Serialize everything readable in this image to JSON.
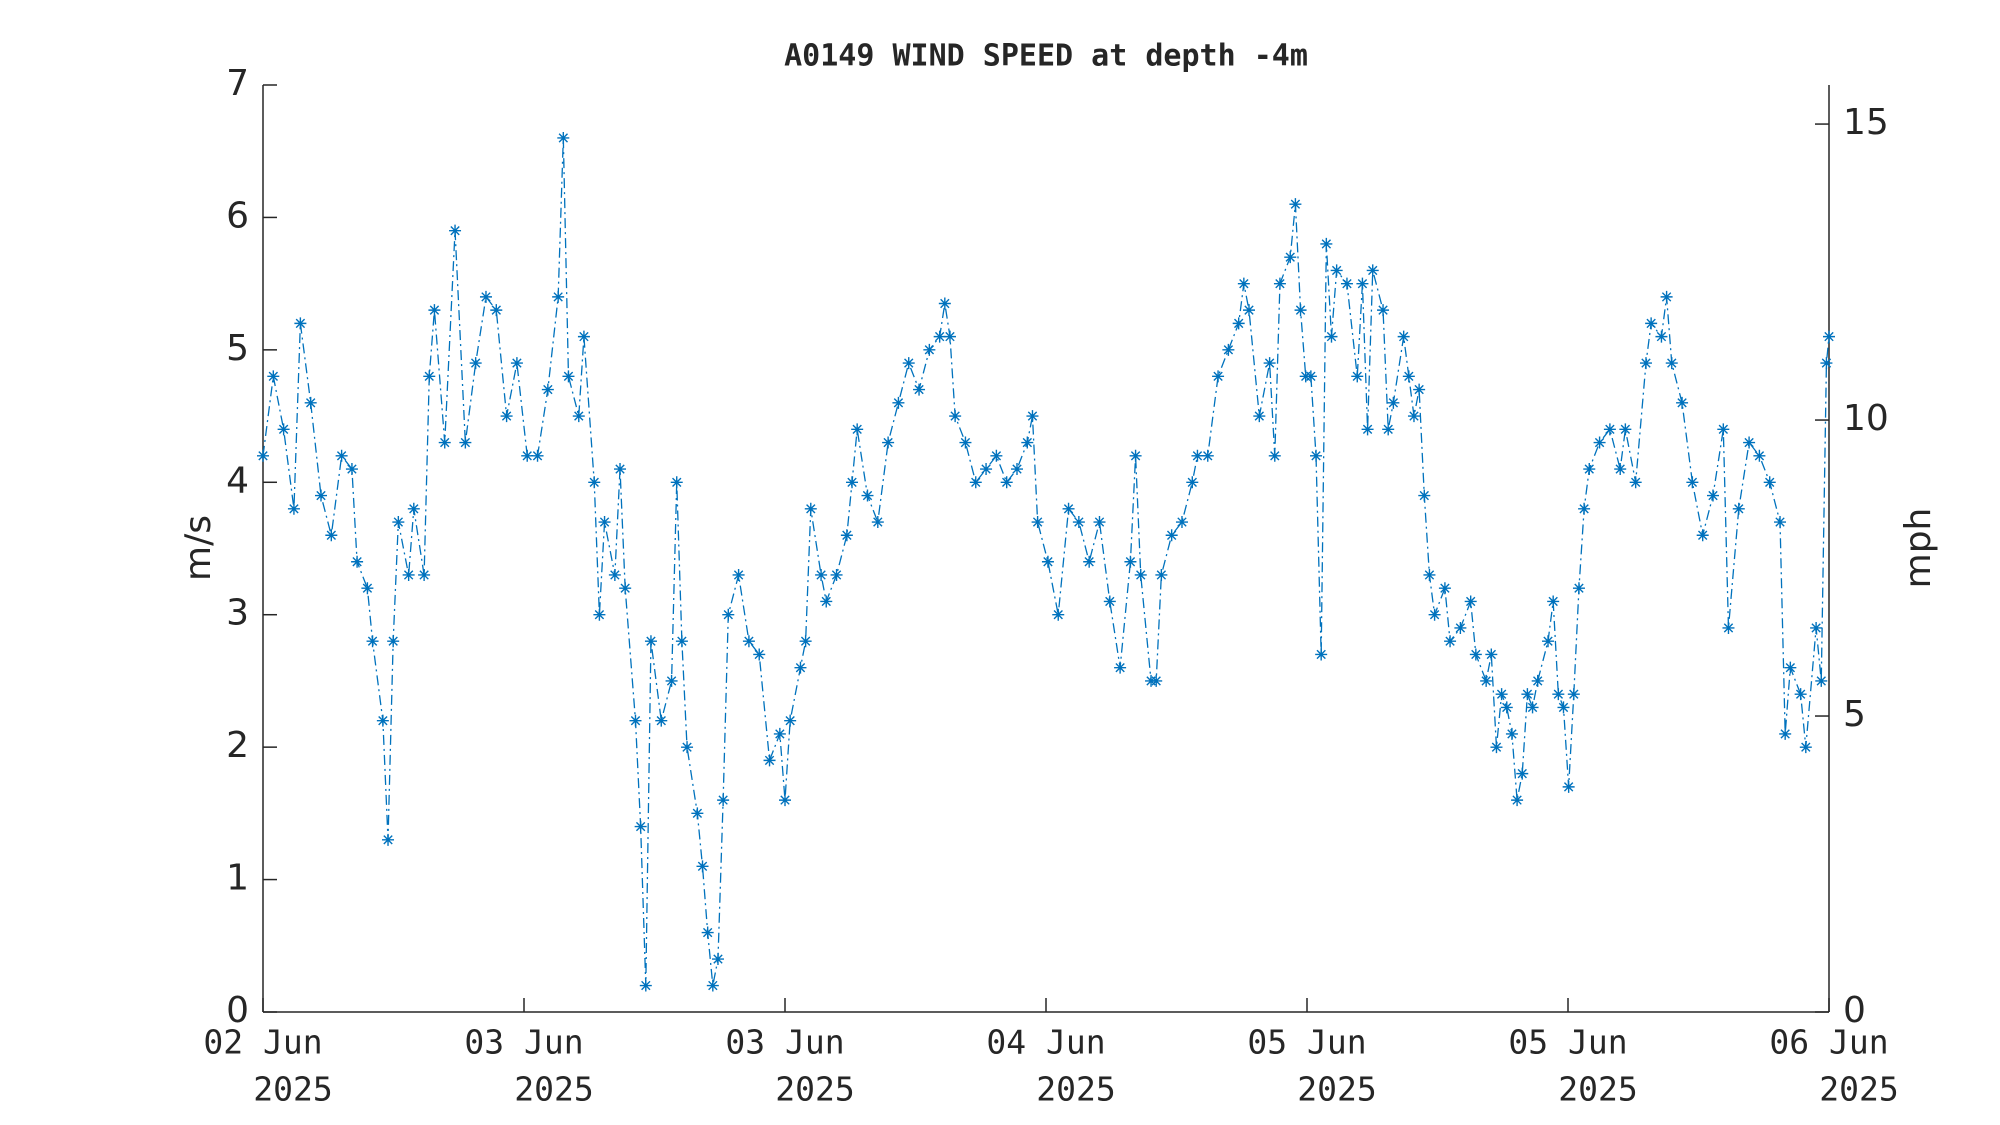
{
  "chart_data": {
    "type": "line",
    "title": "A0149 WIND SPEED at depth -4m",
    "ylabel": "m/s",
    "y2label": "mph",
    "xlim": [
      0,
      1215
    ],
    "xticks": [
      {
        "value": 0,
        "label": [
          "02 Jun",
          "2025"
        ]
      },
      {
        "value": 202.5,
        "label": [
          "03 Jun",
          "2025"
        ]
      },
      {
        "value": 405,
        "label": [
          "03 Jun",
          "2025"
        ]
      },
      {
        "value": 607.5,
        "label": [
          "04 Jun",
          "2025"
        ]
      },
      {
        "value": 810,
        "label": [
          "05 Jun",
          "2025"
        ]
      },
      {
        "value": 1012.5,
        "label": [
          "05 Jun",
          "2025"
        ]
      },
      {
        "value": 1215,
        "label": [
          "06 Jun",
          "2025"
        ]
      }
    ],
    "ylim": [
      0,
      7
    ],
    "yticks": [
      0,
      1,
      2,
      3,
      4,
      5,
      6,
      7
    ],
    "y2lim": [
      0,
      15.66
    ],
    "y2ticks": [
      0,
      5,
      10,
      15
    ],
    "series": [
      {
        "color": "#0072bd",
        "line_style": "dash-dot",
        "marker": "asterisk",
        "x": [
          0,
          8,
          16,
          24,
          29,
          37,
          45,
          53,
          61,
          69,
          73,
          81,
          85,
          93,
          97,
          101,
          105,
          113,
          117,
          125,
          129,
          133,
          141,
          149,
          157,
          165,
          173,
          181,
          189,
          197,
          205,
          213,
          221,
          229,
          233,
          237,
          245,
          249,
          257,
          261,
          265,
          273,
          277,
          281,
          289,
          293,
          297,
          301,
          309,
          317,
          321,
          325,
          329,
          337,
          341,
          345,
          349,
          353,
          357,
          361,
          369,
          377,
          385,
          393,
          401,
          405,
          409,
          417,
          421,
          425,
          433,
          437,
          445,
          453,
          457,
          461,
          469,
          477,
          485,
          493,
          501,
          509,
          517,
          525,
          529,
          533,
          537,
          545,
          553,
          561,
          569,
          577,
          585,
          593,
          597,
          601,
          609,
          617,
          625,
          633,
          641,
          649,
          657,
          665,
          673,
          677,
          681,
          689,
          693,
          697,
          705,
          713,
          721,
          725,
          733,
          741,
          749,
          757,
          761,
          765,
          773,
          781,
          785,
          789,
          797,
          801,
          805,
          809,
          813,
          817,
          821,
          825,
          829,
          833,
          841,
          849,
          853,
          857,
          861,
          869,
          873,
          877,
          885,
          889,
          893,
          897,
          901,
          905,
          909,
          917,
          921,
          929,
          937,
          941,
          949,
          953,
          957,
          961,
          965,
          969,
          973,
          977,
          981,
          985,
          989,
          997,
          1001,
          1005,
          1009,
          1013,
          1017,
          1021,
          1025,
          1029,
          1037,
          1045,
          1053,
          1057,
          1065,
          1073,
          1077,
          1085,
          1089,
          1093,
          1101,
          1109,
          1117,
          1125,
          1133,
          1137,
          1145,
          1153,
          1161,
          1169,
          1177,
          1181,
          1185,
          1193,
          1197,
          1205,
          1209,
          1213,
          1215
        ],
        "values": [
          4.2,
          4.8,
          4.4,
          3.8,
          5.2,
          4.6,
          3.9,
          3.6,
          4.2,
          4.1,
          3.4,
          3.2,
          2.8,
          2.2,
          1.3,
          2.8,
          3.7,
          3.3,
          3.8,
          3.3,
          4.8,
          5.3,
          4.3,
          5.9,
          4.3,
          4.9,
          5.4,
          5.3,
          4.5,
          4.9,
          4.2,
          4.2,
          4.7,
          5.4,
          6.6,
          4.8,
          4.5,
          5.1,
          4.0,
          3.0,
          3.7,
          3.3,
          4.1,
          3.2,
          2.2,
          1.4,
          0.2,
          2.8,
          2.2,
          2.5,
          4.0,
          2.8,
          2.0,
          1.5,
          1.1,
          0.6,
          0.2,
          0.4,
          1.6,
          3.0,
          3.3,
          2.8,
          2.7,
          1.9,
          2.1,
          1.6,
          2.2,
          2.6,
          2.8,
          3.8,
          3.3,
          3.1,
          3.3,
          3.6,
          4.0,
          4.4,
          3.9,
          3.7,
          4.3,
          4.6,
          4.9,
          4.7,
          5.0,
          5.1,
          5.35,
          5.1,
          4.5,
          4.3,
          4.0,
          4.1,
          4.2,
          4.0,
          4.1,
          4.3,
          4.5,
          3.7,
          3.4,
          3.0,
          3.8,
          3.7,
          3.4,
          3.7,
          3.1,
          2.6,
          3.4,
          4.2,
          3.3,
          2.5,
          2.5,
          3.3,
          3.6,
          3.7,
          4.0,
          4.2,
          4.2,
          4.8,
          5.0,
          5.2,
          5.5,
          5.3,
          4.5,
          4.9,
          4.2,
          5.5,
          5.7,
          6.1,
          5.3,
          4.8,
          4.8,
          4.2,
          2.7,
          5.8,
          5.1,
          5.6,
          5.5,
          4.8,
          5.5,
          4.4,
          5.6,
          5.3,
          4.4,
          4.6,
          5.1,
          4.8,
          4.5,
          4.7,
          3.9,
          3.3,
          3.0,
          3.2,
          2.8,
          2.9,
          3.1,
          2.7,
          2.5,
          2.7,
          2.0,
          2.4,
          2.3,
          2.1,
          1.6,
          1.8,
          2.4,
          2.3,
          2.5,
          2.8,
          3.1,
          2.4,
          2.3,
          1.7,
          2.4,
          3.2,
          3.8,
          4.1,
          4.3,
          4.4,
          4.1,
          4.4,
          4.0,
          4.9,
          5.2,
          5.1,
          5.4,
          4.9,
          4.6,
          4.0,
          3.6,
          3.9,
          4.4,
          2.9,
          3.8,
          4.3,
          4.2,
          4.0,
          3.7,
          2.1,
          2.6,
          2.4,
          2.0,
          2.9,
          2.5,
          4.9,
          5.1
        ]
      }
    ]
  }
}
